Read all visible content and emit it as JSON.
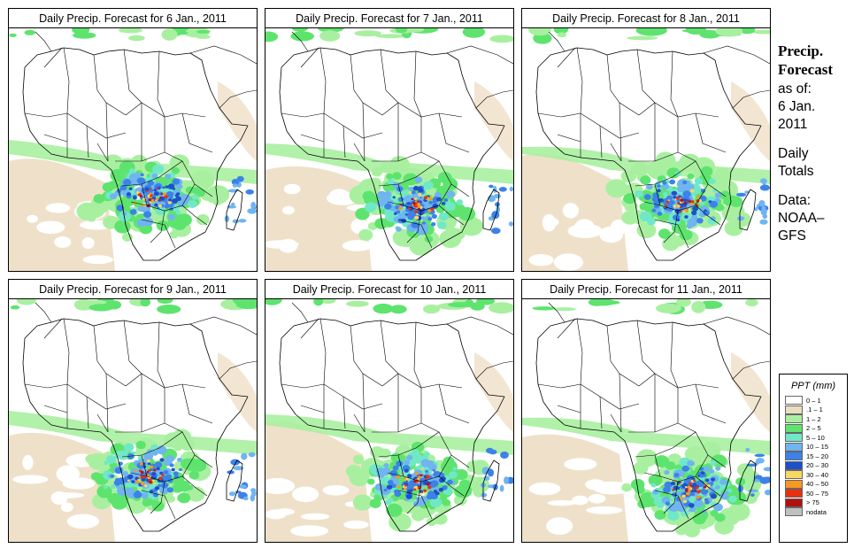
{
  "panels": [
    {
      "title": "Daily Precip. Forecast for  6 Jan., 2011",
      "pattern": 0
    },
    {
      "title": "Daily Precip. Forecast for  7 Jan., 2011",
      "pattern": 1
    },
    {
      "title": "Daily Precip. Forecast for  8 Jan., 2011",
      "pattern": 2
    },
    {
      "title": "Daily Precip. Forecast for  9 Jan., 2011",
      "pattern": 3
    },
    {
      "title": "Daily Precip. Forecast for  10 Jan., 2011",
      "pattern": 4
    },
    {
      "title": "Daily Precip. Forecast for  11 Jan., 2011",
      "pattern": 5
    }
  ],
  "side": {
    "title_line1": "Precip.",
    "title_line2": "Forecast",
    "asof_label": "as of:",
    "date_line1": "6 Jan.",
    "date_line2": "2011",
    "daily_line1": "Daily",
    "daily_line2": "Totals",
    "data_line1": "Data:",
    "data_line2": "NOAA–",
    "data_line3": "GFS"
  },
  "legend": {
    "title": "PPT (mm)",
    "items": [
      {
        "label": "0 – 1",
        "color": "#ffffff"
      },
      {
        "label": ".1 – 1",
        "color": "#ecdcc0"
      },
      {
        "label": "1 – 2",
        "color": "#a8f0a0"
      },
      {
        "label": "2 – 5",
        "color": "#5ee46e"
      },
      {
        "label": "5 – 10",
        "color": "#70e8c8"
      },
      {
        "label": "10 – 15",
        "color": "#70b4f0"
      },
      {
        "label": "15 – 20",
        "color": "#3c82e8"
      },
      {
        "label": "20 – 30",
        "color": "#1e50c8"
      },
      {
        "label": "30 – 40",
        "color": "#f8d860"
      },
      {
        "label": "40 – 50",
        "color": "#f89820"
      },
      {
        "label": "50 – 75",
        "color": "#e83010"
      },
      {
        "label": "> 75",
        "color": "#b01010"
      },
      {
        "label": "nodata",
        "color": "#c0c0c0"
      }
    ]
  }
}
